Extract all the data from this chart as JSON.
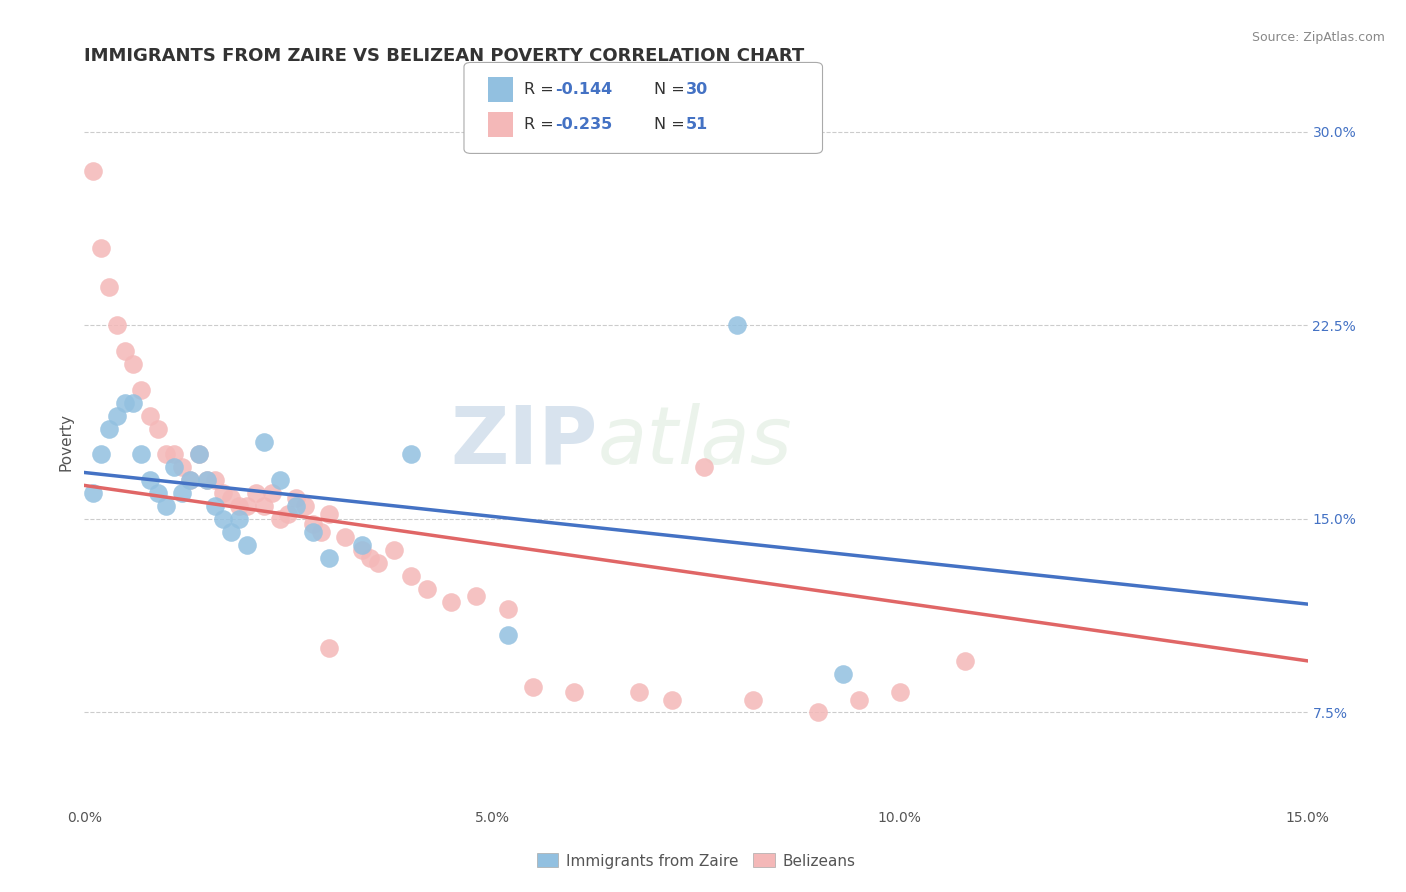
{
  "title": "IMMIGRANTS FROM ZAIRE VS BELIZEAN POVERTY CORRELATION CHART",
  "source_text": "Source: ZipAtlas.com",
  "ylabel": "Poverty",
  "xlim": [
    0.0,
    0.15
  ],
  "ylim": [
    0.04,
    0.32
  ],
  "xticks": [
    0.0,
    0.05,
    0.1,
    0.15
  ],
  "xtick_labels": [
    "0.0%",
    "5.0%",
    "10.0%",
    "15.0%"
  ],
  "yticks_right": [
    0.075,
    0.15,
    0.225,
    0.3
  ],
  "ytick_labels_right": [
    "7.5%",
    "15.0%",
    "22.5%",
    "30.0%"
  ],
  "blue_color": "#92c0e0",
  "pink_color": "#f4b8b8",
  "blue_line_color": "#4472c4",
  "pink_line_color": "#e06666",
  "watermark_zip": "ZIP",
  "watermark_atlas": "atlas",
  "legend_label_blue": "Immigrants from Zaire",
  "legend_label_pink": "Belizeans",
  "blue_scatter_x": [
    0.001,
    0.002,
    0.003,
    0.004,
    0.005,
    0.006,
    0.007,
    0.008,
    0.009,
    0.01,
    0.011,
    0.012,
    0.013,
    0.014,
    0.015,
    0.016,
    0.017,
    0.018,
    0.019,
    0.02,
    0.022,
    0.024,
    0.026,
    0.028,
    0.03,
    0.034,
    0.04,
    0.052,
    0.08,
    0.093
  ],
  "blue_scatter_y": [
    0.16,
    0.175,
    0.185,
    0.19,
    0.195,
    0.195,
    0.175,
    0.165,
    0.16,
    0.155,
    0.17,
    0.16,
    0.165,
    0.175,
    0.165,
    0.155,
    0.15,
    0.145,
    0.15,
    0.14,
    0.18,
    0.165,
    0.155,
    0.145,
    0.135,
    0.14,
    0.175,
    0.105,
    0.225,
    0.09
  ],
  "pink_scatter_x": [
    0.001,
    0.002,
    0.003,
    0.004,
    0.005,
    0.006,
    0.007,
    0.008,
    0.009,
    0.01,
    0.011,
    0.012,
    0.013,
    0.014,
    0.015,
    0.016,
    0.017,
    0.018,
    0.019,
    0.02,
    0.021,
    0.022,
    0.023,
    0.024,
    0.025,
    0.026,
    0.027,
    0.028,
    0.029,
    0.03,
    0.032,
    0.034,
    0.035,
    0.036,
    0.038,
    0.04,
    0.042,
    0.045,
    0.048,
    0.052,
    0.055,
    0.06,
    0.068,
    0.072,
    0.076,
    0.082,
    0.09,
    0.095,
    0.1,
    0.108,
    0.03
  ],
  "pink_scatter_y": [
    0.285,
    0.255,
    0.24,
    0.225,
    0.215,
    0.21,
    0.2,
    0.19,
    0.185,
    0.175,
    0.175,
    0.17,
    0.165,
    0.175,
    0.165,
    0.165,
    0.16,
    0.158,
    0.155,
    0.155,
    0.16,
    0.155,
    0.16,
    0.15,
    0.152,
    0.158,
    0.155,
    0.148,
    0.145,
    0.152,
    0.143,
    0.138,
    0.135,
    0.133,
    0.138,
    0.128,
    0.123,
    0.118,
    0.12,
    0.115,
    0.085,
    0.083,
    0.083,
    0.08,
    0.17,
    0.08,
    0.075,
    0.08,
    0.083,
    0.095,
    0.1
  ],
  "title_fontsize": 13,
  "axis_label_fontsize": 11,
  "tick_fontsize": 10,
  "grid_color": "#cccccc",
  "background_color": "#ffffff",
  "blue_line_x0": 0.0,
  "blue_line_x1": 0.15,
  "blue_line_y0": 0.168,
  "blue_line_y1": 0.117,
  "pink_line_x0": 0.0,
  "pink_line_x1": 0.15,
  "pink_line_y0": 0.163,
  "pink_line_y1": 0.095
}
